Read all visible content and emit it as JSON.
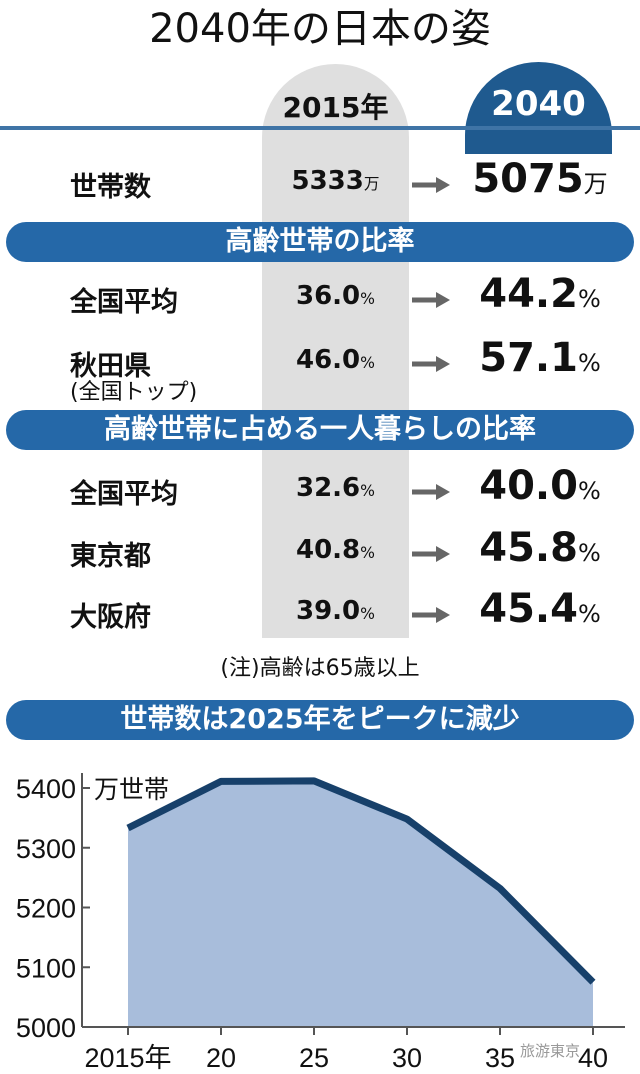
{
  "title": "2040年の日本の姿",
  "headers": {
    "y2015": "2015年",
    "y2040": "2040"
  },
  "households": {
    "label": "世帯数",
    "v2015": "5333",
    "v2040": "5075",
    "unit": "万"
  },
  "section_elderly": {
    "title": "高齢世帯の比率",
    "rows": [
      {
        "label": "全国平均",
        "sub": "",
        "v2015": "36.0",
        "v2040": "44.2"
      },
      {
        "label": "秋田県",
        "sub": "(全国トップ)",
        "v2015": "46.0",
        "v2040": "57.1"
      }
    ]
  },
  "section_single": {
    "title": "高齢世帯に占める一人暮らしの比率",
    "rows": [
      {
        "label": "全国平均",
        "v2015": "32.6",
        "v2040": "40.0"
      },
      {
        "label": "東京都",
        "v2015": "40.8",
        "v2040": "45.8"
      },
      {
        "label": "大阪府",
        "v2015": "39.0",
        "v2040": "45.4"
      }
    ]
  },
  "percent": "%",
  "note": "(注)高齢は65歳以上",
  "watermark": "旅游東京",
  "colors": {
    "dark_blue": "#1f5a8f",
    "banner_blue": "#2568a8",
    "area_fill": "#a8bddb",
    "line": "#17406a",
    "column_gray": "#dfdfdf"
  },
  "chart_data": {
    "type": "area",
    "title": "世帯数は2025年をピークに減少",
    "ylabel": "万世帯",
    "x": [
      2015,
      2020,
      2025,
      2030,
      2035,
      2040
    ],
    "x_tick_labels": [
      "2015年",
      "20",
      "25",
      "30",
      "35",
      "40"
    ],
    "values": [
      5333,
      5411,
      5412,
      5348,
      5232,
      5075
    ],
    "ylim": [
      5000,
      5400
    ],
    "y_ticks": [
      5000,
      5100,
      5200,
      5300,
      5400
    ],
    "grid": false
  }
}
